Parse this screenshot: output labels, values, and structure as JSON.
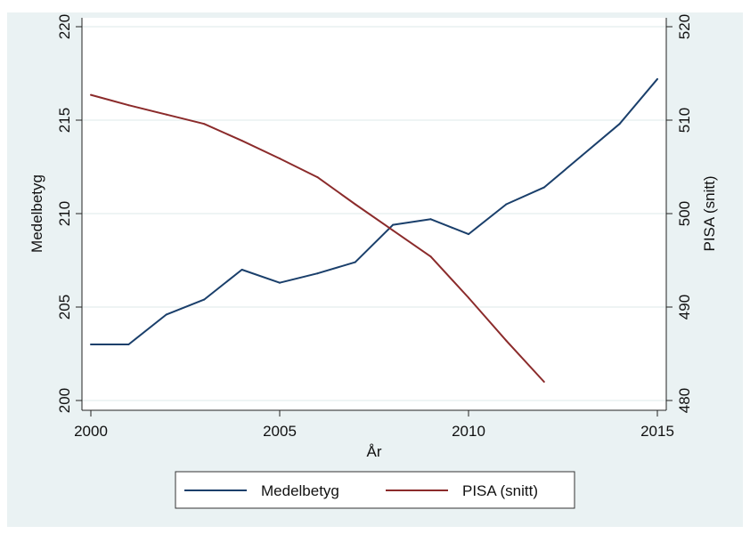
{
  "chart_data": {
    "type": "line",
    "xlabel": "År",
    "ylabel_left": "Medelbetyg",
    "ylabel_right": "PISA (snitt)",
    "xlim": [
      2000,
      2015
    ],
    "ylim_left": [
      200,
      220
    ],
    "ylim_right": [
      480,
      520
    ],
    "x_ticks": [
      "2000",
      "2005",
      "2010",
      "2015"
    ],
    "y_ticks_left": [
      "200",
      "205",
      "210",
      "215",
      "220"
    ],
    "y_ticks_right": [
      "480",
      "490",
      "500",
      "510",
      "520"
    ],
    "grid": true,
    "legend_position": "bottom",
    "series": [
      {
        "name": "Medelbetyg",
        "axis": "left",
        "color": "#1a3f6b",
        "x": [
          2000,
          2001,
          2002,
          2003,
          2004,
          2005,
          2006,
          2007,
          2008,
          2009,
          2010,
          2011,
          2012,
          2013,
          2014,
          2015
        ],
        "y": [
          203.0,
          203.0,
          204.6,
          205.4,
          207.0,
          206.3,
          206.8,
          207.4,
          209.4,
          209.7,
          208.9,
          210.5,
          211.4,
          213.1,
          214.8,
          217.2
        ]
      },
      {
        "name": "PISA (snitt)",
        "axis": "right",
        "color": "#8b2b2b",
        "x": [
          2000,
          2001,
          2002,
          2003,
          2004,
          2005,
          2006,
          2007,
          2008,
          2009,
          2010,
          2011,
          2012
        ],
        "y": [
          512.7,
          511.6,
          510.6,
          509.6,
          507.8,
          505.9,
          503.9,
          501.0,
          498.2,
          495.4,
          491.0,
          486.4,
          482.0
        ]
      }
    ]
  }
}
